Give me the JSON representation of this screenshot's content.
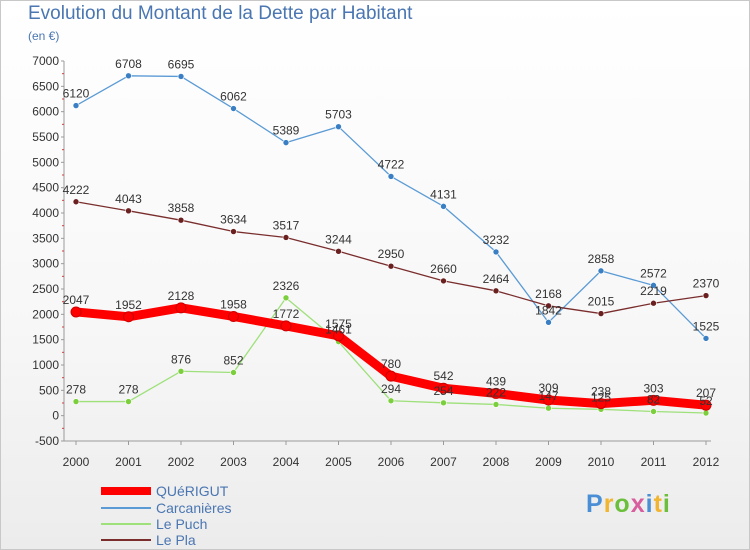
{
  "title": "Evolution du Montant de la Dette par Habitant",
  "subtitle": "(en €)",
  "brand": {
    "text": "Proxiti",
    "letter_colors": [
      "#4a8fd6",
      "#f2b531",
      "#6cbf3c",
      "#d85d9e",
      "#4a8fd6",
      "#f2b531",
      "#6cbf3c"
    ]
  },
  "chart_data": {
    "type": "line",
    "x": [
      "2000",
      "2001",
      "2002",
      "2003",
      "2004",
      "2005",
      "2006",
      "2007",
      "2008",
      "2009",
      "2010",
      "2011",
      "2012"
    ],
    "y_ticks": [
      "-500",
      "0",
      "500",
      "1000",
      "1500",
      "2000",
      "2500",
      "3000",
      "3500",
      "4000",
      "4500",
      "5000",
      "5500",
      "6000",
      "6500",
      "7000"
    ],
    "ylim": [
      -500,
      7000
    ],
    "grid": false,
    "legend_position": "bottom-left",
    "series": [
      {
        "name": "Carcanières",
        "color": "#5b9bd5",
        "marker_color": "#3a7fc3",
        "values": [
          6120,
          6708,
          6695,
          6062,
          5389,
          5703,
          4722,
          4131,
          3232,
          1842,
          2858,
          2572,
          1525
        ],
        "labels": [
          "6120",
          "6708",
          "6695",
          "6062",
          "5389",
          "5703",
          "4722",
          "4131",
          "3232",
          "1842",
          "2858",
          "2572",
          "1525"
        ]
      },
      {
        "name": "Le Pla",
        "color": "#7a2d2d",
        "marker_color": "#6b2020",
        "values": [
          4222,
          4043,
          3858,
          3634,
          3517,
          3244,
          2950,
          2660,
          2464,
          2168,
          2015,
          2219,
          2370
        ],
        "labels": [
          "4222",
          "4043",
          "3858",
          "3634",
          "3517",
          "3244",
          "2950",
          "2660",
          "2464",
          "2168",
          "2015",
          "2219",
          "2370"
        ]
      },
      {
        "name": "Le Puch",
        "color": "#9ee07a",
        "marker_color": "#7ccf3c",
        "values": [
          278,
          278,
          876,
          852,
          2326,
          1461,
          294,
          254,
          222,
          147,
          125,
          82,
          52
        ],
        "labels": [
          "278",
          "278",
          "876",
          "852",
          "2326",
          "1461",
          "294",
          "254",
          "222",
          "147",
          "125",
          "82",
          "52"
        ]
      },
      {
        "name": "QUéRIGUT",
        "color": "#ff0000",
        "marker_color": "#ff0000",
        "values": [
          2047,
          1952,
          2128,
          1958,
          1772,
          1575,
          780,
          542,
          439,
          309,
          238,
          303,
          207
        ],
        "labels": [
          "2047",
          "1952",
          "2128",
          "1958",
          "1772",
          "1575",
          "780",
          "542",
          "439",
          "309",
          "238",
          "303",
          "207"
        ]
      }
    ]
  },
  "legend": [
    {
      "label": "QUéRIGUT",
      "color": "#ff0000"
    },
    {
      "label": "Carcanières",
      "color": "#5b9bd5"
    },
    {
      "label": "Le Puch",
      "color": "#9ee07a"
    },
    {
      "label": "Le Pla",
      "color": "#7a2d2d"
    }
  ]
}
